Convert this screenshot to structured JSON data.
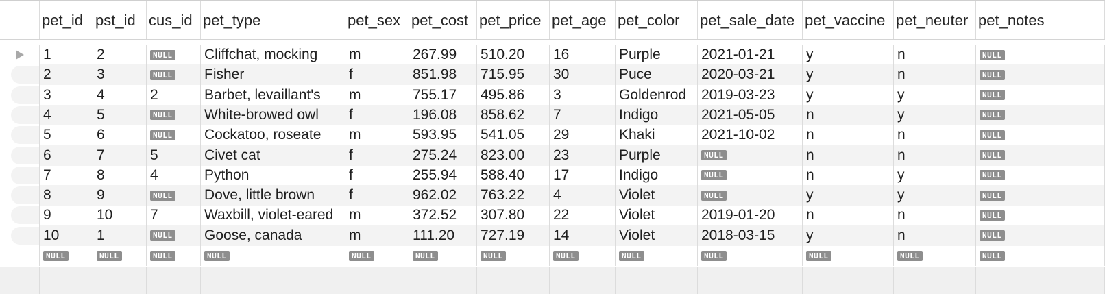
{
  "columns": [
    "pet_id",
    "pst_id",
    "cus_id",
    "pet_type",
    "pet_sex",
    "pet_cost",
    "pet_price",
    "pet_age",
    "pet_color",
    "pet_sale_date",
    "pet_vaccine",
    "pet_neuter",
    "pet_notes"
  ],
  "null_label": "NULL",
  "rows": [
    [
      "1",
      "2",
      null,
      "Cliffchat, mocking",
      "m",
      "267.99",
      "510.20",
      "16",
      "Purple",
      "2021-01-21",
      "y",
      "n",
      null
    ],
    [
      "2",
      "3",
      null,
      "Fisher",
      "f",
      "851.98",
      "715.95",
      "30",
      "Puce",
      "2020-03-21",
      "y",
      "n",
      null
    ],
    [
      "3",
      "4",
      "2",
      "Barbet, levaillant's",
      "m",
      "755.17",
      "495.86",
      "3",
      "Goldenrod",
      "2019-03-23",
      "y",
      "y",
      null
    ],
    [
      "4",
      "5",
      null,
      "White-browed owl",
      "f",
      "196.08",
      "858.62",
      "7",
      "Indigo",
      "2021-05-05",
      "n",
      "y",
      null
    ],
    [
      "5",
      "6",
      null,
      "Cockatoo, roseate",
      "m",
      "593.95",
      "541.05",
      "29",
      "Khaki",
      "2021-10-02",
      "n",
      "n",
      null
    ],
    [
      "6",
      "7",
      "5",
      "Civet cat",
      "f",
      "275.24",
      "823.00",
      "23",
      "Purple",
      null,
      "n",
      "n",
      null
    ],
    [
      "7",
      "8",
      "4",
      "Python",
      "f",
      "255.94",
      "588.40",
      "17",
      "Indigo",
      null,
      "n",
      "y",
      null
    ],
    [
      "8",
      "9",
      null,
      "Dove, little brown",
      "f",
      "962.02",
      "763.22",
      "4",
      "Violet",
      null,
      "y",
      "y",
      null
    ],
    [
      "9",
      "10",
      "7",
      "Waxbill, violet-eared",
      "m",
      "372.52",
      "307.80",
      "22",
      "Violet",
      "2019-01-20",
      "n",
      "n",
      null
    ],
    [
      "10",
      "1",
      null,
      "Goose, canada",
      "m",
      "111.20",
      "727.19",
      "14",
      "Violet",
      "2018-03-15",
      "y",
      "n",
      null
    ],
    [
      null,
      null,
      null,
      null,
      null,
      null,
      null,
      null,
      null,
      null,
      null,
      null,
      null
    ]
  ],
  "colors": {
    "null_badge": "#8e8e8e",
    "row_alt": "#f3f3f3",
    "grid_line": "#dcdcdc"
  },
  "selected_row_marker_icon": "triangle-right-icon"
}
